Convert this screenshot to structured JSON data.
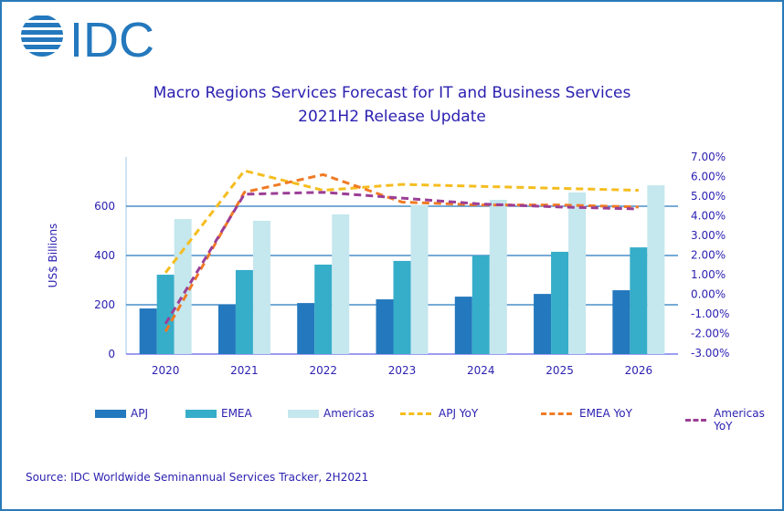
{
  "logo_text": "IDC",
  "title_line1": "Macro Regions Services Forecast for IT and Business Services",
  "title_line2": "2021H2 Release Update",
  "source": "Source:  IDC Worldwide Seminannual Services Tracker, 2H2021",
  "colors": {
    "APJ": "#2478bd",
    "EMEA": "#36adc9",
    "Americas": "#c5e7ee",
    "APJ YoY": "#f5bd1f",
    "EMEA YoY": "#f07b25",
    "Americas YoY": "#9b3f96",
    "text": "#2a1fb0"
  },
  "chart_data": {
    "type": "bar+line",
    "title": "Macro Regions Services Forecast for IT and Business Services 2021H2 Release Update",
    "categories": [
      "2020",
      "2021",
      "2022",
      "2023",
      "2024",
      "2025",
      "2026"
    ],
    "ylabel": "US$ Billions",
    "ylim": [
      0,
      800
    ],
    "yticks": [
      "0",
      "200",
      "400",
      "600"
    ],
    "y2lim": [
      -3,
      7
    ],
    "y2ticks": [
      "-3.00%",
      "-2.00%",
      "-1.00%",
      "0.00%",
      "1.00%",
      "2.00%",
      "3.00%",
      "4.00%",
      "5.00%",
      "6.00%",
      "7.00%"
    ],
    "grid": true,
    "legend_position": "bottom",
    "bar_series": [
      {
        "name": "APJ",
        "values": [
          185,
          200,
          207,
          222,
          233,
          244,
          259
        ]
      },
      {
        "name": "EMEA",
        "values": [
          322,
          341,
          363,
          378,
          400,
          415,
          433
        ]
      },
      {
        "name": "Americas",
        "values": [
          548,
          541,
          567,
          605,
          626,
          656,
          685
        ]
      }
    ],
    "line_series": [
      {
        "name": "APJ YoY",
        "axis": "right",
        "values": [
          1.1,
          6.3,
          5.3,
          5.6,
          5.5,
          5.4,
          5.3
        ]
      },
      {
        "name": "EMEA YoY",
        "axis": "right",
        "values": [
          -1.9,
          5.2,
          6.1,
          4.7,
          4.55,
          4.55,
          4.45
        ]
      },
      {
        "name": "Americas YoY",
        "axis": "right",
        "values": [
          -1.5,
          5.1,
          5.2,
          4.9,
          4.6,
          4.45,
          4.35
        ]
      }
    ]
  }
}
